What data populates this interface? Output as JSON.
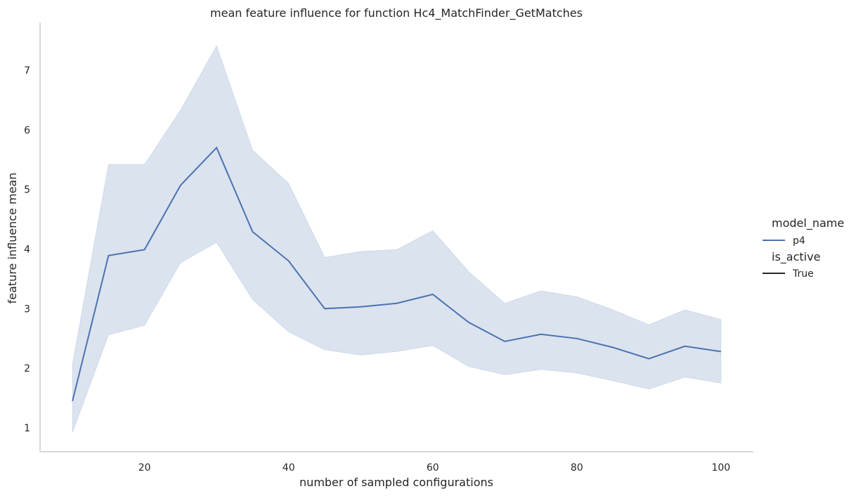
{
  "chart_data": {
    "type": "line",
    "title": "mean feature influence for function Hc4_MatchFinder_GetMatches",
    "xlabel": "number of sampled configurations",
    "ylabel": "feature influence mean",
    "xlim": [
      5.5,
      104.5
    ],
    "ylim": [
      0.6,
      7.8
    ],
    "xticks": [
      20,
      40,
      60,
      80,
      100
    ],
    "yticks": [
      1,
      2,
      3,
      4,
      5,
      6,
      7
    ],
    "grid": false,
    "legend": {
      "placement": "right",
      "groups": [
        {
          "title": "model_name",
          "entries": [
            {
              "label": "p4",
              "color": "#4c72b0"
            }
          ]
        },
        {
          "title": "is_active",
          "entries": [
            {
              "label": "True",
              "color": "#262626"
            }
          ]
        }
      ]
    },
    "series": [
      {
        "name": "p4",
        "color": "#4c72b0",
        "x": [
          10,
          15,
          20,
          25,
          30,
          35,
          40,
          45,
          50,
          55,
          60,
          65,
          70,
          75,
          80,
          85,
          90,
          95,
          100
        ],
        "y": [
          1.45,
          3.89,
          3.99,
          5.07,
          5.7,
          4.29,
          3.8,
          3.0,
          3.03,
          3.09,
          3.24,
          2.77,
          2.45,
          2.57,
          2.5,
          2.35,
          2.16,
          2.37,
          2.28
        ],
        "ci_lower": [
          0.92,
          2.56,
          2.72,
          3.77,
          4.11,
          3.15,
          2.61,
          2.31,
          2.22,
          2.28,
          2.38,
          2.03,
          1.89,
          1.98,
          1.92,
          1.79,
          1.65,
          1.85,
          1.75
        ],
        "ci_upper": [
          2.07,
          5.42,
          5.42,
          6.33,
          7.41,
          5.66,
          5.1,
          3.86,
          3.96,
          3.99,
          4.31,
          3.62,
          3.09,
          3.3,
          3.2,
          2.98,
          2.73,
          2.98,
          2.82
        ]
      }
    ]
  }
}
